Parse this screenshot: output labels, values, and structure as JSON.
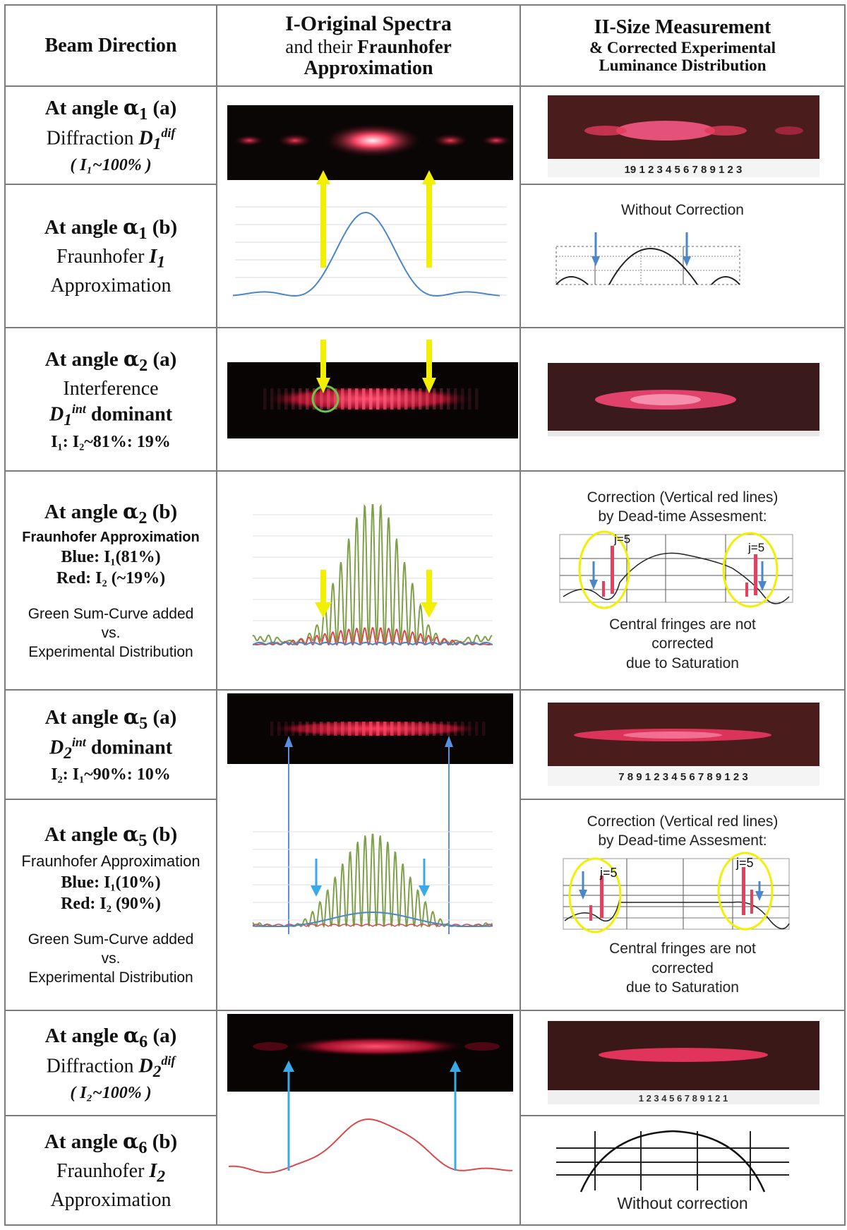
{
  "header": {
    "col1": "Beam Direction",
    "col2_line1": "I-Original Spectra",
    "col2_line2a": "and their ",
    "col2_line2b": "Fraunhofer",
    "col2_line3": "Approximation",
    "col3_line1": "II-Size Measurement",
    "col3_line2": "& Corrected Experimental",
    "col3_line3": "Luminance Distribution"
  },
  "rows": [
    {
      "angle_prefix": "At angle ",
      "alpha": "α",
      "sub": "1",
      "suffix": " (a)",
      "line2": "Diffraction ",
      "sym": "D",
      "sym_sup": "dif",
      "sym_sub": "1",
      "line3": "( I₁~100% )"
    },
    {
      "angle_prefix": "At angle ",
      "alpha": "α",
      "sub": "1",
      "suffix": " (b)",
      "line2": "Fraunhofer ",
      "sym": "I",
      "sym_sub": "1",
      "line3": "Approximation",
      "right_note": "Without Correction"
    },
    {
      "angle_prefix": "At angle ",
      "alpha": "α",
      "sub": "2",
      "suffix": " (a)",
      "line2": "Interference",
      "sym": "D",
      "sym_sup": "int",
      "sym_sub": "1",
      "sym_tail": " dominant",
      "line4": "I₁: I₂~81%: 19%"
    },
    {
      "angle_prefix": "At angle ",
      "alpha": "α",
      "sub": "2",
      "suffix": " (b)",
      "line2": "Fraunhofer Approximation",
      "blue": "Blue:  I₁(81%)",
      "red": "Red:  I₂ (~19%)",
      "green1": "Green Sum-Curve added",
      "green2": "vs.",
      "green3": "Experimental Distribution",
      "right_top1": "Correction (Vertical red lines)",
      "right_top2": "by Dead-time Assesment:",
      "right_bot1": "Central fringes are not",
      "right_bot2": "corrected",
      "right_bot3": "due to Saturation",
      "j_label": "j=5"
    },
    {
      "angle_prefix": "At angle ",
      "alpha": "α",
      "sub": "5",
      "suffix": " (a)",
      "sym": "D",
      "sym_sup": "int",
      "sym_sub": "2",
      "sym_tail": " dominant",
      "line4": "I₂: I₁~90%: 10%"
    },
    {
      "angle_prefix": "At angle ",
      "alpha": "α",
      "sub": "5",
      "suffix": " (b)",
      "line2": "Fraunhofer Approximation",
      "blue": "Blue:  I₁(10%)",
      "red": "Red:  I₂ (90%)",
      "green1": "Green Sum-Curve added",
      "green2": "vs.",
      "green3": "Experimental Distribution",
      "right_top1": "Correction (Vertical red lines)",
      "right_top2": "by Dead-time Assesment:",
      "right_bot1": "Central fringes are not",
      "right_bot2": "corrected",
      "right_bot3": "due to Saturation",
      "j_label": "j=5"
    },
    {
      "angle_prefix": "At angle ",
      "alpha": "α",
      "sub": "6",
      "suffix": " (a)",
      "line2": "Diffraction ",
      "sym": "D",
      "sym_sup": "dif",
      "sym_sub": "2",
      "line3": "( I₂~100% )"
    },
    {
      "angle_prefix": "At angle ",
      "alpha": "α",
      "sub": "6",
      "suffix": " (b)",
      "line2": "Fraunhofer ",
      "sym": "I",
      "sym_sub": "2",
      "line3": "Approximation",
      "right_note": "Without correction"
    }
  ],
  "ruler": {
    "r1": "19 1 2 3 4 5 6 7 8 9 1 2 3",
    "r5": "7 8 9 1 2 3 4 5 6 7 8 9 1 2 3",
    "r7": "1 2 3 4 5 6 7 8 9 1 2 1"
  },
  "colors": {
    "border": "#7c7c7c",
    "arrow_yellow": "#f2ef00",
    "arrow_blue": "#3aa9e8",
    "curve_blue": "#4a86c8",
    "curve_red": "#d84a4a",
    "curve_green": "#7ea04a",
    "fringe_red": "#ff3a5a"
  }
}
